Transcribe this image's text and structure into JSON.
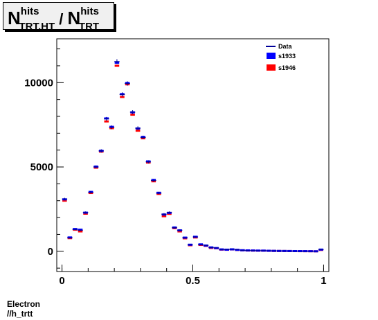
{
  "title": {
    "main": "N",
    "sup1": "hits",
    "sub1": "TRT,HT",
    "sep": " / ",
    "main2": "N",
    "sup2": "hits",
    "sub2": "TRT"
  },
  "footer": {
    "line1": "Electron",
    "line2": "//h_trtt"
  },
  "chart_data": {
    "type": "scatter",
    "xlim": [
      -0.02,
      1.02
    ],
    "ylim": [
      -1200,
      12600
    ],
    "x_ticks": [
      0,
      0.5,
      1
    ],
    "x_tick_labels": [
      "0",
      "0.5",
      "1"
    ],
    "y_ticks": [
      0,
      5000,
      10000
    ],
    "y_tick_labels": [
      "0",
      "5000",
      "10000"
    ],
    "legend_position": "top-right",
    "bin_width": 0.02,
    "x": [
      0.01,
      0.03,
      0.05,
      0.07,
      0.09,
      0.11,
      0.13,
      0.15,
      0.17,
      0.19,
      0.21,
      0.23,
      0.25,
      0.27,
      0.29,
      0.31,
      0.33,
      0.35,
      0.37,
      0.39,
      0.41,
      0.43,
      0.45,
      0.47,
      0.49,
      0.51,
      0.53,
      0.55,
      0.57,
      0.59,
      0.61,
      0.63,
      0.65,
      0.67,
      0.69,
      0.71,
      0.73,
      0.75,
      0.77,
      0.79,
      0.81,
      0.83,
      0.85,
      0.87,
      0.89,
      0.91,
      0.93,
      0.95,
      0.97,
      0.99
    ],
    "series": [
      {
        "name": "Data",
        "color": "#000099",
        "values": [
          3100,
          800,
          1300,
          1250,
          2300,
          3500,
          5000,
          5950,
          7850,
          7350,
          11250,
          9300,
          9950,
          8250,
          7300,
          6750,
          5300,
          4200,
          3450,
          2200,
          2300,
          1400,
          1250,
          800,
          380,
          850,
          400,
          350,
          220,
          200,
          100,
          100,
          120,
          90,
          60,
          50,
          45,
          40,
          40,
          30,
          25,
          20,
          20,
          15,
          12,
          10,
          8,
          5,
          0,
          100
        ]
      },
      {
        "name": "s1933",
        "color": "#0000ff",
        "values": [
          3080,
          820,
          1320,
          1280,
          2290,
          3520,
          5020,
          5960,
          7880,
          7380,
          11180,
          9320,
          9980,
          8240,
          7280,
          6780,
          5330,
          4230,
          3470,
          2180,
          2280,
          1410,
          1240,
          810,
          390,
          860,
          410,
          340,
          230,
          190,
          110,
          95,
          115,
          85,
          60,
          50,
          45,
          40,
          38,
          30,
          25,
          20,
          18,
          15,
          12,
          10,
          8,
          5,
          0,
          100
        ]
      },
      {
        "name": "s1946",
        "color": "#ff0000",
        "values": [
          3000,
          780,
          1280,
          1180,
          2230,
          3460,
          4960,
          5910,
          7700,
          7300,
          11000,
          9150,
          9900,
          8100,
          7150,
          6700,
          5260,
          4150,
          3400,
          2080,
          2220,
          1370,
          1180,
          770,
          360,
          820,
          380,
          320,
          200,
          180,
          100,
          90,
          110,
          80,
          55,
          45,
          40,
          35,
          35,
          28,
          22,
          18,
          16,
          14,
          11,
          9,
          7,
          5,
          0,
          80
        ]
      }
    ]
  }
}
